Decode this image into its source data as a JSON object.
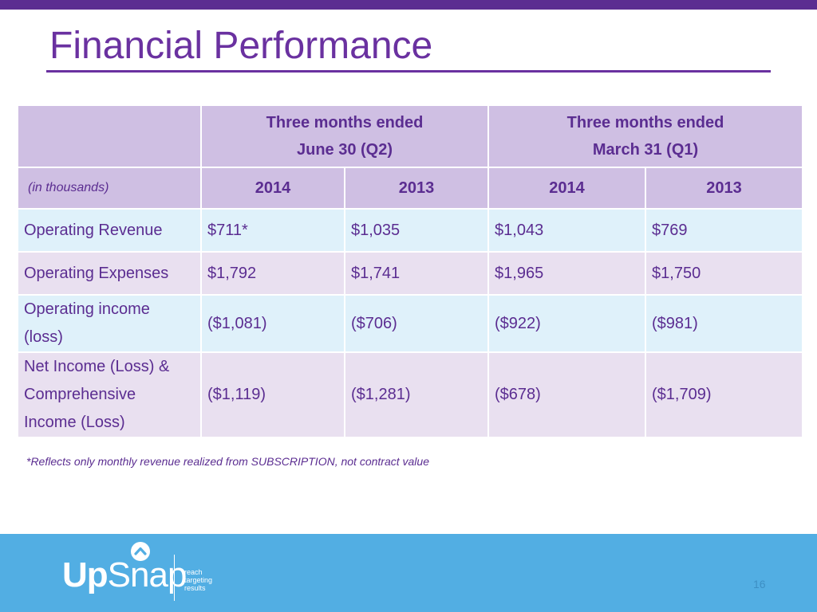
{
  "slide": {
    "title": "Financial Performance",
    "page_number": "16"
  },
  "table": {
    "period_headers": [
      {
        "line1": "Three months ended",
        "line2": "June 30 (Q2)"
      },
      {
        "line1": "Three months ended",
        "line2": "March 31 (Q1)"
      }
    ],
    "unit_label": "(in thousands)",
    "years": [
      "2014",
      "2013",
      "2014",
      "2013"
    ],
    "rows": [
      {
        "label": "Operating Revenue",
        "values": [
          "$711*",
          "$1,035",
          "$1,043",
          "$769"
        ]
      },
      {
        "label": "Operating Expenses",
        "values": [
          "$1,792",
          "$1,741",
          "$1,965",
          "$1,750"
        ]
      },
      {
        "label_lines": [
          "Operating income",
          "(loss)"
        ],
        "values": [
          "($1,081)",
          "($706)",
          "($922)",
          "($981)"
        ]
      },
      {
        "label_lines": [
          "Net Income (Loss) &",
          "Comprehensive",
          "Income (Loss)"
        ],
        "values": [
          "($1,119)",
          "($1,281)",
          "($678)",
          "($1,709)"
        ]
      }
    ]
  },
  "footnote": "*Reflects only monthly revenue realized from SUBSCRIPTION, not contract value",
  "footer": {
    "logo": {
      "text_bold": "Up",
      "text_regular": "Snap",
      "icon": "chevron-up-icon"
    },
    "tagline": [
      "reach",
      "targeting",
      "results"
    ]
  },
  "colors": {
    "brand_purple": "#5b2d91",
    "title_purple": "#6a31a0",
    "header_lavender": "#cfbfe3",
    "row_blue": "#dff1fa",
    "row_lavender": "#e9e0f0",
    "footer_blue": "#52aee3"
  }
}
